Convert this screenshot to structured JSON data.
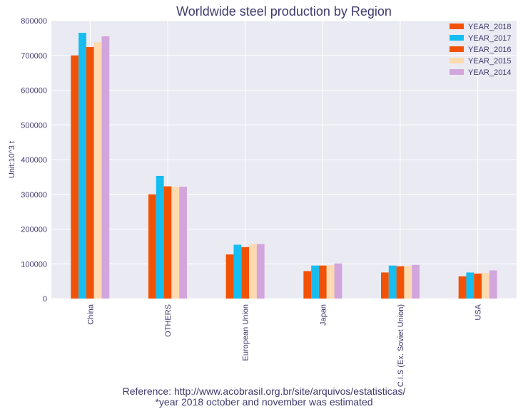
{
  "chart_data": {
    "type": "bar",
    "title": "Worldwide steel production by Region",
    "xlabel": "",
    "ylabel": "Unit:10^3 t",
    "ylim": [
      0,
      800000
    ],
    "yticks": [
      0,
      100000,
      200000,
      300000,
      400000,
      500000,
      600000,
      700000,
      800000
    ],
    "categories": [
      "China",
      "OTHERS",
      "European Union",
      "Japan",
      "C.I.S (Ex. Soviet Union)",
      "USA"
    ],
    "series": [
      {
        "name": "YEAR_2018",
        "color": "#f25205",
        "values": [
          700000,
          300000,
          127000,
          79000,
          75000,
          64000
        ]
      },
      {
        "name": "YEAR_2017",
        "color": "#15bdf0",
        "values": [
          765000,
          353000,
          155000,
          95000,
          95000,
          75000
        ]
      },
      {
        "name": "YEAR_2016",
        "color": "#f25205",
        "values": [
          724000,
          323000,
          148000,
          95000,
          93000,
          72000
        ]
      },
      {
        "name": "YEAR_2015",
        "color": "#fddab0",
        "values": [
          738000,
          321000,
          157000,
          96000,
          94000,
          74000
        ]
      },
      {
        "name": "YEAR_2014",
        "color": "#d2a6dc",
        "values": [
          755000,
          322000,
          157000,
          101000,
          97000,
          81000
        ]
      }
    ],
    "grid": true,
    "legend_position": "top-right",
    "background_color": "#eaeaf2",
    "text_color": "#3f3a6e"
  },
  "footnotes": {
    "line1": "Reference: http://www.acobrasil.org.br/site/arquivos/estatisticas/",
    "line2": "*year 2018 october and november was estimated"
  }
}
